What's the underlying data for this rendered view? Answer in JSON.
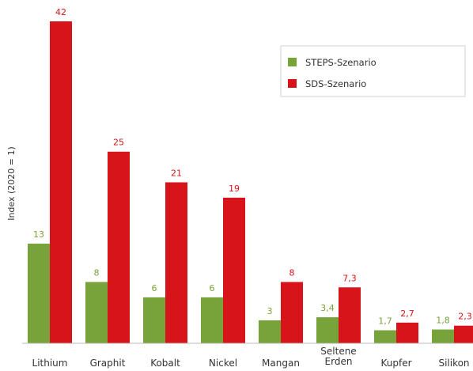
{
  "chart_data": {
    "type": "bar",
    "categories": [
      [
        "Lithium"
      ],
      [
        "Graphit"
      ],
      [
        "Kobalt"
      ],
      [
        "Nickel"
      ],
      [
        "Mangan"
      ],
      [
        "Seltene",
        "Erden"
      ],
      [
        "Kupfer"
      ],
      [
        "Silikon"
      ]
    ],
    "series": [
      {
        "name": "STEPS-Szenario",
        "color": "#77a33a",
        "values": [
          13,
          8,
          6,
          6,
          3,
          3.4,
          1.7,
          1.8
        ],
        "labels": [
          "13",
          "8",
          "6",
          "6",
          "3",
          "3,4",
          "1,7",
          "1,8"
        ]
      },
      {
        "name": "SDS-Szenario",
        "color": "#d7141a",
        "values": [
          42,
          25,
          21,
          19,
          8,
          7.3,
          2.7,
          2.3
        ],
        "labels": [
          "42",
          "25",
          "21",
          "19",
          "8",
          "7,3",
          "2,7",
          "2,3"
        ]
      }
    ],
    "ylabel": "Index (2020 = 1)",
    "ylim": [
      0,
      42
    ],
    "grid": false,
    "legend": "top-right"
  }
}
